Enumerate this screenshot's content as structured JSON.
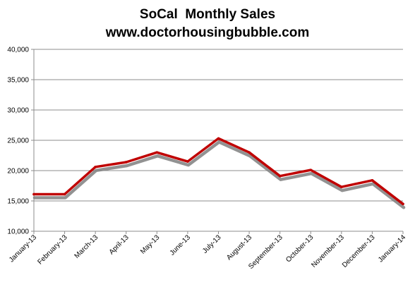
{
  "chart_data": {
    "type": "line",
    "title": "SoCal  Monthly Sales",
    "subtitle": "www.doctorhousingbubble.com",
    "xlabel": "",
    "ylabel": "",
    "categories": [
      "January-13",
      "February-13",
      "March-13",
      "April-13",
      "May-13",
      "June-13",
      "July-13",
      "August-13",
      "September-13",
      "October-13",
      "November-13",
      "December-13",
      "January-14"
    ],
    "series": [
      {
        "values": [
          16100,
          16100,
          20600,
          21400,
          23000,
          21500,
          25300,
          23000,
          19100,
          20100,
          17300,
          18400,
          14500
        ]
      }
    ],
    "ylim": [
      10000,
      40000
    ],
    "yticks": [
      "10,000",
      "15,000",
      "20,000",
      "25,000",
      "30,000",
      "35,000",
      "40,000"
    ],
    "grid": true,
    "line_color": "#c00000",
    "shadow_color": "#7f7f7f"
  }
}
